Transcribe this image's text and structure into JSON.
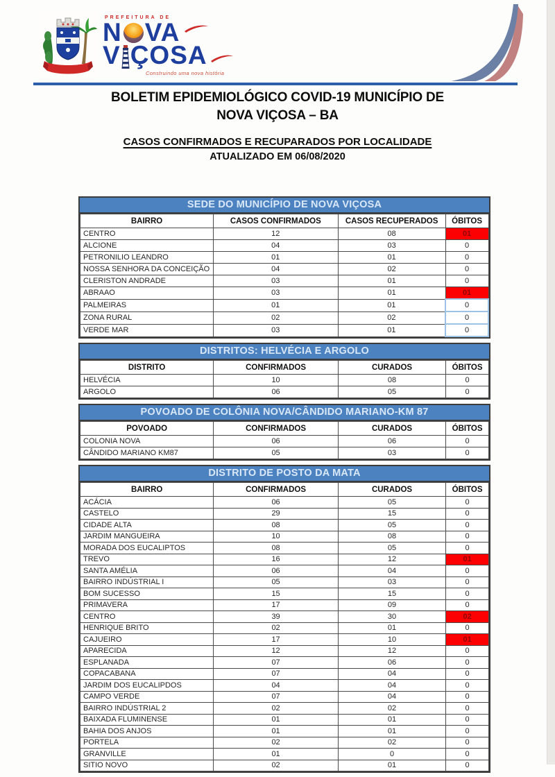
{
  "logo": {
    "prefeitura": "PREFEITURA DE",
    "name_line1_pre": "N",
    "name_line1_post": "VA",
    "name_line2_pre": "V",
    "name_line2_post": "ÇOSA",
    "tagline": "Construindo uma nova história"
  },
  "header": {
    "title_line1": "BOLETIM EPIDEMIOLÓGICO COVID-19 MUNICÍPIO DE",
    "title_line2": "NOVA VIÇOSA – BA",
    "subtitle": "CASOS CONFIRMADOS E RECUPARADOS POR LOCALIDADE",
    "updated": "ATUALIZADO EM 06/08/2020"
  },
  "colors": {
    "band_blue": "#4d82c0",
    "band_text": "#d9e8f8",
    "divider_blue": "#2e5fa8",
    "alert_red_bg": "#fd0002",
    "alert_red_text": "#8f0505",
    "logo_blue": "#1e3e9e",
    "logo_red": "#cc2b28",
    "swoosh_slate": "#6b80a4",
    "swoosh_rose": "#c08180",
    "outline_light_blue": "#9cc3e5"
  },
  "tables": [
    {
      "title": "SEDE DO MUNICÍPIO DE NOVA VIÇOSA",
      "columns": [
        "BAIRRO",
        "CASOS CONFIRMADOS",
        "CASOS RECUPERADOS",
        "ÓBITOS"
      ],
      "rows": [
        {
          "cells": [
            "CENTRO",
            "12",
            "08",
            "01"
          ],
          "alert": true
        },
        {
          "cells": [
            "ALCIONE",
            "04",
            "03",
            "0"
          ]
        },
        {
          "cells": [
            "PETRONILIO LEANDRO",
            "01",
            "01",
            "0"
          ]
        },
        {
          "cells": [
            "NOSSA SENHORA DA CONCEIÇÃO",
            "04",
            "02",
            "0"
          ]
        },
        {
          "cells": [
            "CLERISTON ANDRADE",
            "03",
            "01",
            "0"
          ]
        },
        {
          "cells": [
            "ABRAAO",
            "03",
            "01",
            "01"
          ],
          "alert": true
        },
        {
          "cells": [
            "PALMEIRAS",
            "01",
            "01",
            "0"
          ],
          "outline": true
        },
        {
          "cells": [
            "ZONA RURAL",
            "02",
            "02",
            "0"
          ],
          "outline": true
        },
        {
          "cells": [
            "VERDE MAR",
            "03",
            "01",
            "0"
          ],
          "outline": true
        }
      ]
    },
    {
      "title": "DISTRITOS: HELVÉCIA E ARGOLO",
      "columns": [
        "DISTRITO",
        "CONFIRMADOS",
        "CURADOS",
        "ÓBITOS"
      ],
      "rows": [
        {
          "cells": [
            "HELVÉCIA",
            "10",
            "08",
            "0"
          ]
        },
        {
          "cells": [
            "ARGOLO",
            "06",
            "05",
            "0"
          ]
        }
      ]
    },
    {
      "title": "POVOADO DE COLÔNIA NOVA/CÂNDIDO MARIANO-KM 87",
      "columns": [
        "POVOADO",
        "CONFIRMADOS",
        "CURADOS",
        "ÓBITOS"
      ],
      "rows": [
        {
          "cells": [
            "COLONIA NOVA",
            "06",
            "06",
            "0"
          ]
        },
        {
          "cells": [
            "CÂNDIDO MARIANO KM87",
            "05",
            "03",
            "0"
          ]
        }
      ]
    },
    {
      "title": "DISTRITO DE POSTO DA MATA",
      "columns": [
        "BAIRRO",
        "CONFIRMADOS",
        "CURADOS",
        "ÓBITOS"
      ],
      "rows": [
        {
          "cells": [
            "ACÁCIA",
            "06",
            "05",
            "0"
          ]
        },
        {
          "cells": [
            "CASTELO",
            "29",
            "15",
            "0"
          ]
        },
        {
          "cells": [
            "CIDADE ALTA",
            "08",
            "05",
            "0"
          ]
        },
        {
          "cells": [
            "JARDIM MANGUEIRA",
            "10",
            "08",
            "0"
          ]
        },
        {
          "cells": [
            "MORADA DOS EUCALIPTOS",
            "08",
            "05",
            "0"
          ]
        },
        {
          "cells": [
            "TREVO",
            "16",
            "12",
            "01"
          ],
          "alert": true
        },
        {
          "cells": [
            "SANTA AMÉLIA",
            "06",
            "04",
            "0"
          ]
        },
        {
          "cells": [
            "BAIRRO INDÚSTRIAL I",
            "05",
            "03",
            "0"
          ]
        },
        {
          "cells": [
            "BOM SUCESSO",
            "15",
            "15",
            "0"
          ]
        },
        {
          "cells": [
            "PRIMAVERA",
            "17",
            "09",
            "0"
          ]
        },
        {
          "cells": [
            "CENTRO",
            "39",
            "30",
            "02"
          ],
          "alert": true
        },
        {
          "cells": [
            "HENRIQUE BRITO",
            "02",
            "01",
            "0"
          ]
        },
        {
          "cells": [
            "CAJUEIRO",
            "17",
            "10",
            "01"
          ],
          "alert": true
        },
        {
          "cells": [
            "APARECIDA",
            "12",
            "12",
            "0"
          ]
        },
        {
          "cells": [
            "ESPLANADA",
            "07",
            "06",
            "0"
          ]
        },
        {
          "cells": [
            "COPACABANA",
            "07",
            "04",
            "0"
          ]
        },
        {
          "cells": [
            "JARDIM DOS EUCALIPDOS",
            "04",
            "04",
            "0"
          ]
        },
        {
          "cells": [
            "CAMPO VERDE",
            "07",
            "04",
            "0"
          ]
        },
        {
          "cells": [
            "BAIRRO INDÚSTRIAL 2",
            "02",
            "02",
            "0"
          ]
        },
        {
          "cells": [
            "BAIXADA FLUMINENSE",
            "01",
            "01",
            "0"
          ]
        },
        {
          "cells": [
            "BAHIA DOS ANJOS",
            "01",
            "01",
            "0"
          ]
        },
        {
          "cells": [
            "PORTELA",
            "02",
            "02",
            "0"
          ]
        },
        {
          "cells": [
            "GRANVILLE",
            "01",
            "0",
            "0"
          ]
        },
        {
          "cells": [
            "SITIO NOVO",
            "02",
            "01",
            "0"
          ]
        }
      ]
    }
  ]
}
